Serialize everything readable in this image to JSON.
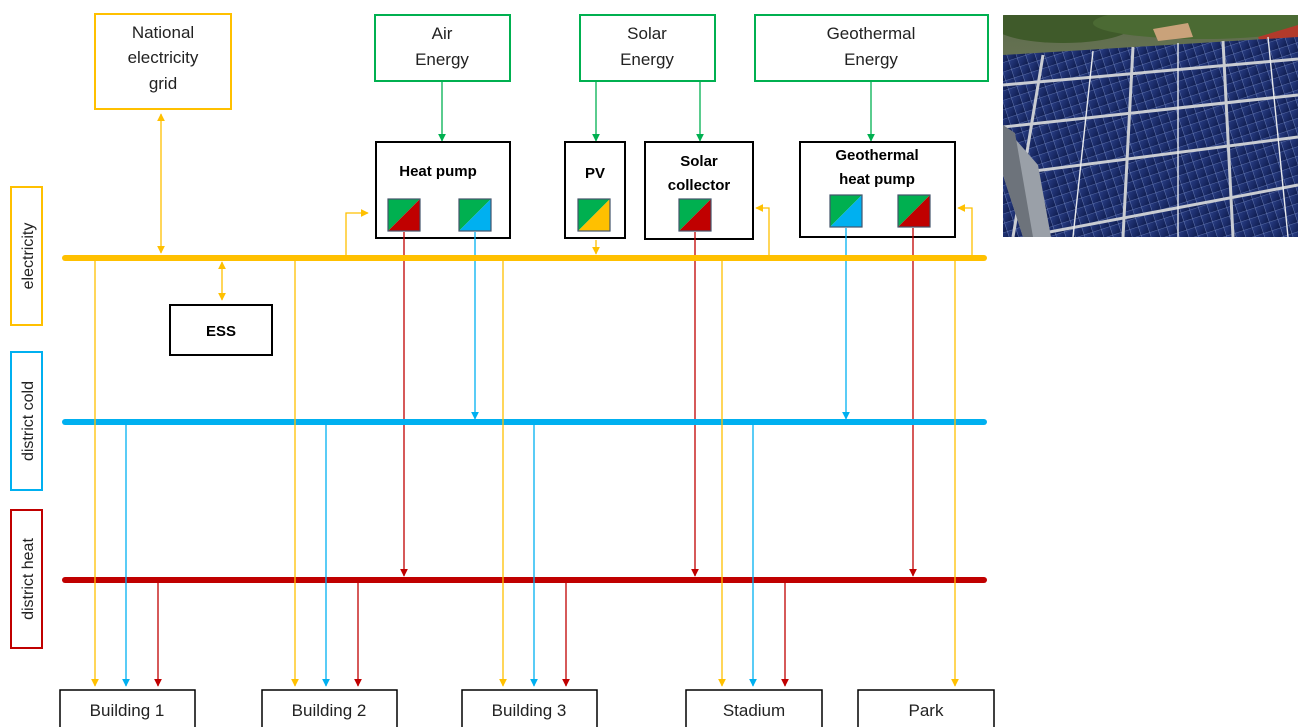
{
  "sources": {
    "grid": [
      "National",
      "electricity",
      "grid"
    ],
    "air": [
      "Air",
      "Energy"
    ],
    "solar": [
      "Solar",
      "Energy"
    ],
    "geothermal": [
      "Geothermal",
      "Energy"
    ]
  },
  "buses": {
    "electricity": "electricity",
    "cold": "district cold",
    "heat": "district heat"
  },
  "devices": {
    "heat_pump": "Heat pump",
    "pv": "PV",
    "solar_collector": [
      "Solar",
      "collector"
    ],
    "geothermal_heat_pump": [
      "Geothermal",
      "heat pump"
    ],
    "ess": "ESS"
  },
  "consumers": [
    "Building 1",
    "Building 2",
    "Building 3",
    "Stadium",
    "Park"
  ],
  "colors": {
    "electricity": "#FFC000",
    "cold": "#00B0F0",
    "heat": "#C00000",
    "renewable": "#00B050",
    "frame": "#000000"
  },
  "photo": {
    "icon": "solar-panel-array-photo"
  }
}
